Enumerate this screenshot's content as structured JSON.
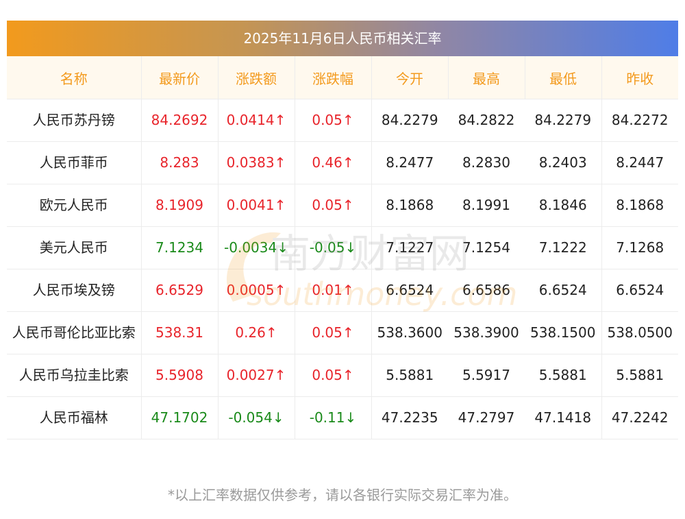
{
  "title": "2025年11月6日人民币相关汇率",
  "headers": [
    "名称",
    "最新价",
    "涨跌额",
    "涨跌幅",
    "今开",
    "最高",
    "最低",
    "昨收"
  ],
  "rows": [
    {
      "name": "人民币苏丹镑",
      "latest": "84.2692",
      "change": "0.0414↑",
      "pct": "0.05↑",
      "open": "84.2279",
      "high": "84.2822",
      "low": "84.2279",
      "prev": "84.2272",
      "dir": "up"
    },
    {
      "name": "人民币菲币",
      "latest": "8.283",
      "change": "0.0383↑",
      "pct": "0.46↑",
      "open": "8.2477",
      "high": "8.2830",
      "low": "8.2403",
      "prev": "8.2447",
      "dir": "up"
    },
    {
      "name": "欧元人民币",
      "latest": "8.1909",
      "change": "0.0041↑",
      "pct": "0.05↑",
      "open": "8.1868",
      "high": "8.1991",
      "low": "8.1846",
      "prev": "8.1868",
      "dir": "up"
    },
    {
      "name": "美元人民币",
      "latest": "7.1234",
      "change": "-0.0034↓",
      "pct": "-0.05↓",
      "open": "7.1227",
      "high": "7.1254",
      "low": "7.1222",
      "prev": "7.1268",
      "dir": "down"
    },
    {
      "name": "人民币埃及镑",
      "latest": "6.6529",
      "change": "0.0005↑",
      "pct": "0.01↑",
      "open": "6.6524",
      "high": "6.6586",
      "low": "6.6524",
      "prev": "6.6524",
      "dir": "up"
    },
    {
      "name": "人民币哥伦比亚比索",
      "latest": "538.31",
      "change": "0.26↑",
      "pct": "0.05↑",
      "open": "538.3600",
      "high": "538.3900",
      "low": "538.1500",
      "prev": "538.0500",
      "dir": "up"
    },
    {
      "name": "人民币乌拉圭比索",
      "latest": "5.5908",
      "change": "0.0027↑",
      "pct": "0.05↑",
      "open": "5.5881",
      "high": "5.5917",
      "low": "5.5881",
      "prev": "5.5881",
      "dir": "up"
    },
    {
      "name": "人民币福林",
      "latest": "47.1702",
      "change": "-0.054↓",
      "pct": "-0.11↓",
      "open": "47.2235",
      "high": "47.2797",
      "low": "47.1418",
      "prev": "47.2242",
      "dir": "down"
    }
  ],
  "watermark": {
    "cn": "南方财富网",
    "en": "southmoney.com"
  },
  "footnote": "*以上汇率数据仅供参考，请以各银行实际交易汇率为准。"
}
